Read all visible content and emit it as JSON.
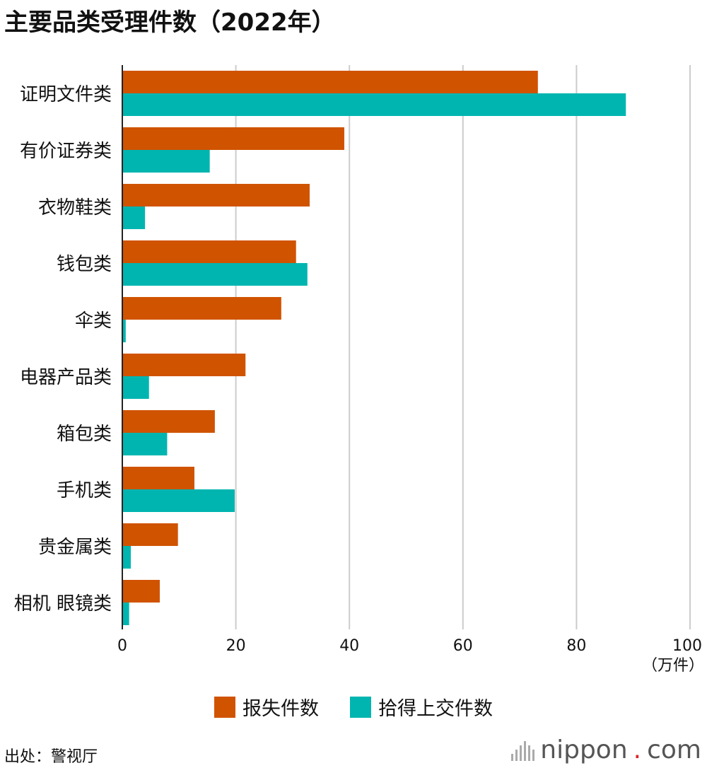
{
  "title": "主要品类受理件数（2022年）",
  "colors": {
    "lost": "#d05300",
    "found": "#00b5b0",
    "grid": "#cccccc",
    "axis": "#222222"
  },
  "chart_data": {
    "type": "bar",
    "orientation": "horizontal",
    "categories": [
      "证明文件类",
      "有价证券类",
      "衣物鞋类",
      "钱包类",
      "伞类",
      "电器产品类",
      "箱包类",
      "手机类",
      "贵金属类",
      "相机 眼镜类"
    ],
    "series": [
      {
        "name": "报失件数",
        "values": [
          73.2,
          39.1,
          33.0,
          30.6,
          28.0,
          21.7,
          16.3,
          12.7,
          9.8,
          6.6
        ]
      },
      {
        "name": "拾得上交件数",
        "values": [
          88.7,
          15.4,
          4.0,
          32.6,
          0.6,
          4.7,
          7.9,
          19.8,
          1.5,
          1.2
        ]
      }
    ],
    "xlim": [
      0,
      100
    ],
    "xticks": [
      0,
      20,
      40,
      60,
      80,
      100
    ],
    "xlabel": "（万件）",
    "grid": true,
    "legend_position": "bottom"
  },
  "source": "出处：警视厅",
  "brand": {
    "name": "nippon",
    "dot": ".",
    "suffix": "com"
  }
}
